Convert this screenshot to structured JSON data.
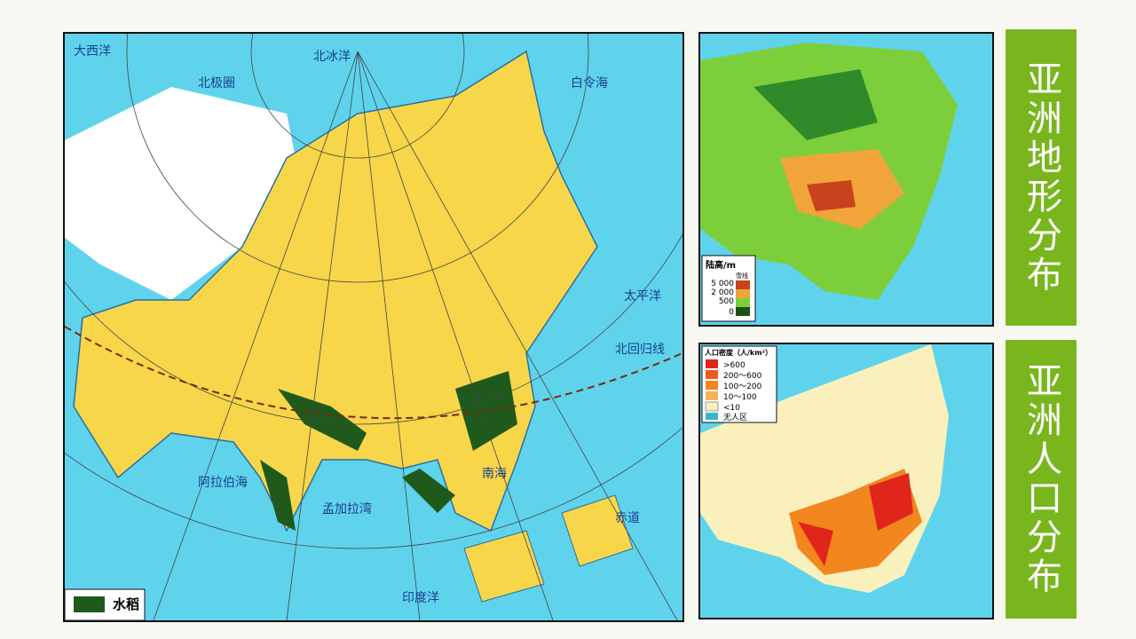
{
  "panels": {
    "terrain_title": "亚洲地形分布",
    "population_title": "亚洲人口分布"
  },
  "main_map": {
    "legend": "水稻",
    "labels": {
      "atlantic": "大西洋",
      "arctic": "北冰洋",
      "bering": "白令海",
      "pacific": "太平洋",
      "indian": "印度洋",
      "arabian": "阿拉伯海",
      "bengal": "孟加拉湾",
      "south_sea": "南海",
      "tropic": "北回归线",
      "arctic_circle": "北极圈",
      "equator": "赤道"
    }
  },
  "terrain_map": {
    "legend_title": "陆高/m",
    "snow": "雪线",
    "levels": [
      "5 000",
      "2 000",
      "500",
      "0"
    ]
  },
  "population_map": {
    "legend_title": "人口密度（人/km²）",
    "classes": [
      ">600",
      "200～600",
      "100～200",
      "10～100",
      "<10",
      "无人区"
    ]
  }
}
